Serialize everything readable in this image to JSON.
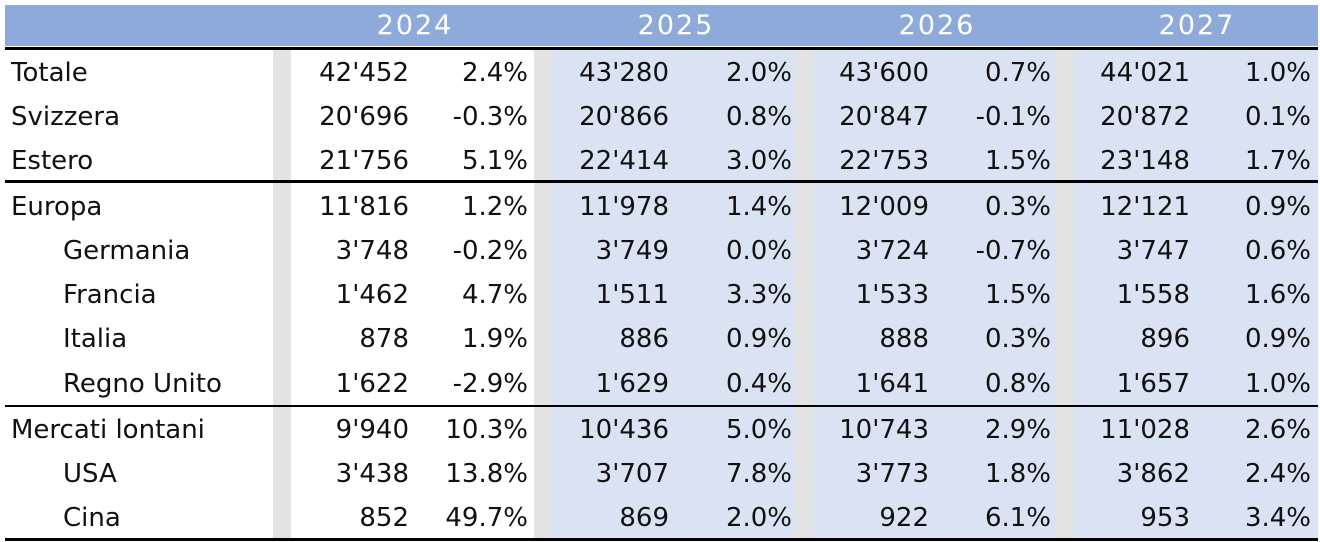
{
  "years": [
    "2024",
    "2025",
    "2026",
    "2027"
  ],
  "rows": [
    {
      "label": "Totale",
      "indent": false,
      "values": [
        "42'452",
        "2.4%",
        "43'280",
        "2.0%",
        "43'600",
        "0.7%",
        "44'021",
        "1.0%"
      ]
    },
    {
      "label": "Svizzera",
      "indent": false,
      "values": [
        "20'696",
        "-0.3%",
        "20'866",
        "0.8%",
        "20'847",
        "-0.1%",
        "20'872",
        "0.1%"
      ]
    },
    {
      "label": "Estero",
      "indent": false,
      "values": [
        "21'756",
        "5.1%",
        "22'414",
        "3.0%",
        "22'753",
        "1.5%",
        "23'148",
        "1.7%"
      ]
    },
    {
      "label": "Europa",
      "indent": false,
      "values": [
        "11'816",
        "1.2%",
        "11'978",
        "1.4%",
        "12'009",
        "0.3%",
        "12'121",
        "0.9%"
      ]
    },
    {
      "label": "Germania",
      "indent": true,
      "values": [
        "3'748",
        "-0.2%",
        "3'749",
        "0.0%",
        "3'724",
        "-0.7%",
        "3'747",
        "0.6%"
      ]
    },
    {
      "label": "Francia",
      "indent": true,
      "values": [
        "1'462",
        "4.7%",
        "1'511",
        "3.3%",
        "1'533",
        "1.5%",
        "1'558",
        "1.6%"
      ]
    },
    {
      "label": "Italia",
      "indent": true,
      "values": [
        "878",
        "1.9%",
        "886",
        "0.9%",
        "888",
        "0.3%",
        "896",
        "0.9%"
      ]
    },
    {
      "label": "Regno Unito",
      "indent": true,
      "values": [
        "1'622",
        "-2.9%",
        "1'629",
        "0.4%",
        "1'641",
        "0.8%",
        "1'657",
        "1.0%"
      ]
    },
    {
      "label": "Mercati lontani",
      "indent": false,
      "values": [
        "9'940",
        "10.3%",
        "10'436",
        "5.0%",
        "10'743",
        "2.9%",
        "11'028",
        "2.6%"
      ]
    },
    {
      "label": "USA",
      "indent": true,
      "values": [
        "3'438",
        "13.8%",
        "3'707",
        "7.8%",
        "3'773",
        "1.8%",
        "3'862",
        "2.4%"
      ]
    },
    {
      "label": "Cina",
      "indent": true,
      "values": [
        "852",
        "49.7%",
        "869",
        "2.0%",
        "922",
        "6.1%",
        "953",
        "3.4%"
      ]
    }
  ],
  "colors": {
    "header": "#8eaadb",
    "band": "#dae3f3",
    "separator": "#e3e3e3"
  }
}
